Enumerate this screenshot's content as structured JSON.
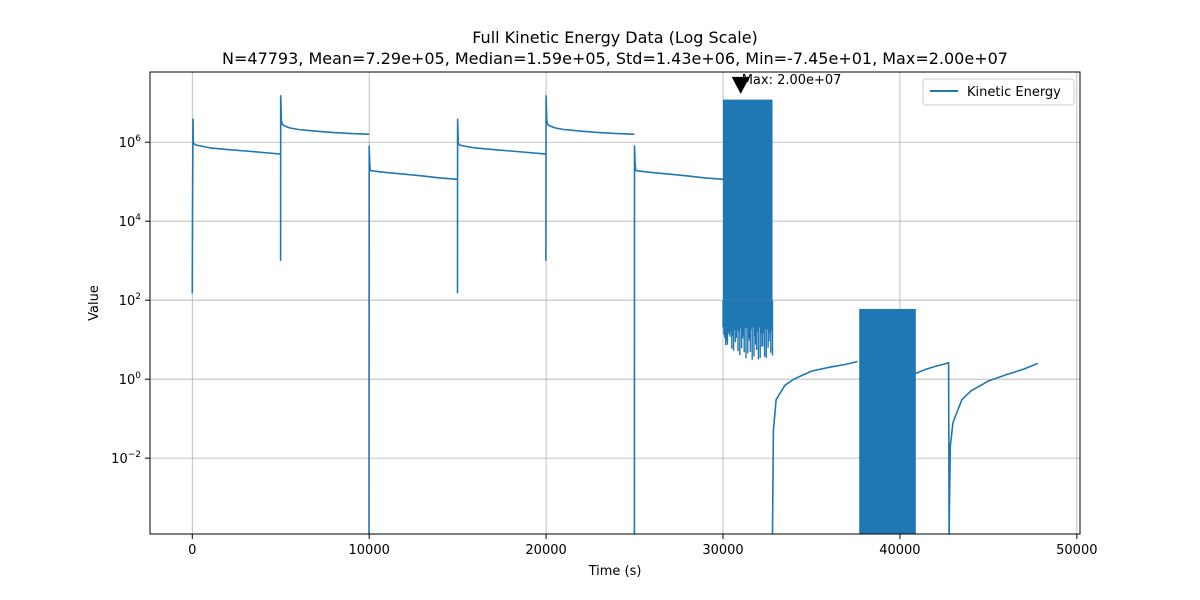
{
  "chart_data": {
    "type": "line",
    "title": "Full Kinetic Energy Data (Log Scale)",
    "subtitle": "N=47793, Mean=7.29e+05, Median=1.59e+05, Std=1.43e+06, Min=-7.45e+01, Max=2.00e+07",
    "xlabel": "Time (s)",
    "ylabel": "Value",
    "yscale": "log",
    "xlim": [
      -2390,
      50180
    ],
    "ylim": [
      0.00012,
      60000000
    ],
    "grid": true,
    "legend_position": "top-right",
    "x_ticks": [
      {
        "value": 0,
        "label": "0"
      },
      {
        "value": 10000,
        "label": "10000"
      },
      {
        "value": 20000,
        "label": "20000"
      },
      {
        "value": 30000,
        "label": "30000"
      },
      {
        "value": 40000,
        "label": "40000"
      },
      {
        "value": 50000,
        "label": "50000"
      }
    ],
    "y_ticks": [
      {
        "value": 0.01,
        "base": "10",
        "exp": "−2"
      },
      {
        "value": 1,
        "base": "10",
        "exp": "0"
      },
      {
        "value": 100,
        "base": "10",
        "exp": "2"
      },
      {
        "value": 10000,
        "base": "10",
        "exp": "4"
      },
      {
        "value": 1000000,
        "base": "10",
        "exp": "6"
      }
    ],
    "annotation": {
      "text": "Max: 2.00e+07",
      "x": 31000,
      "y": 20000000
    },
    "series": [
      {
        "name": "Kinetic Energy",
        "color": "#1f77b4",
        "segments": [
          {
            "x": [
              0,
              10,
              40,
              60,
              200,
              1000,
              2000,
              3000,
              4000,
              4990
            ],
            "y": [
              150,
              10000,
              3800000,
              950000,
              850000,
              720000,
              650000,
              600000,
              550000,
              500000
            ]
          },
          {
            "x": [
              4990,
              5000,
              5040,
              5100,
              5200,
              5500,
              6000,
              7000,
              8000,
              9000,
              9990
            ],
            "y": [
              1000,
              15000000,
              3500000,
              2800000,
              2600000,
              2300000,
              2100000,
              1900000,
              1750000,
              1650000,
              1600000
            ]
          },
          {
            "x": [
              9990,
              10000,
              10030,
              10060,
              10100,
              11000,
              12000,
              13000,
              14000,
              14990
            ],
            "y": [
              0.00012,
              800000,
              300000,
              200000,
              190000,
              170000,
              155000,
              140000,
              125000,
              115000
            ]
          },
          {
            "x": [
              14990,
              15000,
              15040,
              15100,
              15500,
              16000,
              17000,
              18000,
              19000,
              19990
            ],
            "y": [
              150,
              3800000,
              950000,
              850000,
              780000,
              720000,
              650000,
              600000,
              550000,
              500000
            ]
          },
          {
            "x": [
              19990,
              20000,
              20040,
              20100,
              20200,
              20500,
              21000,
              22000,
              23000,
              24000,
              24990
            ],
            "y": [
              1000,
              15000000,
              3500000,
              2800000,
              2600000,
              2300000,
              2100000,
              1900000,
              1750000,
              1650000,
              1600000
            ]
          },
          {
            "x": [
              24990,
              25000,
              25030,
              25060,
              25100,
              26000,
              27000,
              28000,
              29000,
              30000
            ],
            "y": [
              0.00012,
              800000,
              300000,
              200000,
              190000,
              170000,
              155000,
              140000,
              125000,
              115000
            ]
          },
          {
            "x": [
              32800,
              32850,
              33000,
              33500,
              34000,
              35000,
              36000,
              37000,
              37600
            ],
            "y": [
              0.00012,
              0.05,
              0.3,
              0.7,
              1.0,
              1.6,
              2.0,
              2.4,
              2.8
            ]
          },
          {
            "x": [
              40900,
              41500,
              42000,
              42500,
              42750,
              42780,
              42850,
              43000,
              43500,
              44000,
              45000,
              46000,
              47000,
              47793
            ],
            "y": [
              1.4,
              1.8,
              2.1,
              2.4,
              2.6,
              0.00012,
              0.02,
              0.08,
              0.3,
              0.5,
              0.9,
              1.3,
              1.8,
              2.5
            ]
          }
        ],
        "bands": [
          {
            "x0": 30000,
            "x1": 32800,
            "ytop": 12000000,
            "ybottom": 100,
            "ymin": 3,
            "mid_step": 50
          },
          {
            "x0": 37700,
            "x1": 40900,
            "ytop": 60,
            "ybottom": 0.00012,
            "ymin": 0.00012,
            "mid_step": 40
          }
        ]
      }
    ]
  }
}
